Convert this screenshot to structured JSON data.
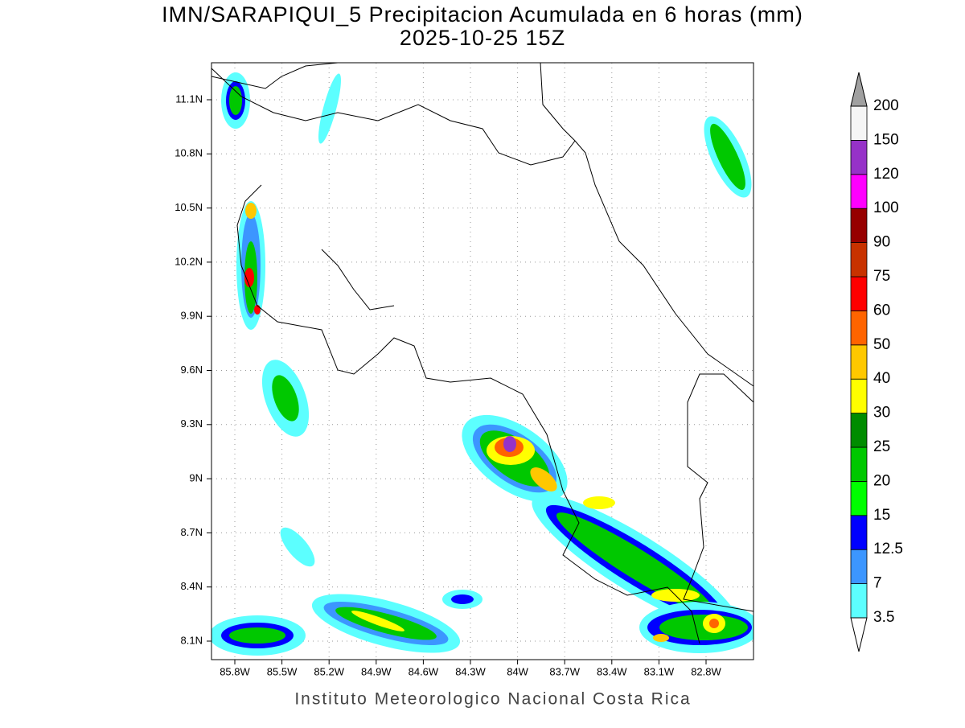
{
  "header": {
    "title": "IMN/SARAPIQUI_5 Precipitacion Acumulada en 6 horas (mm)",
    "subtitle": "2025-10-25 15Z"
  },
  "map": {
    "lat_ticks": [
      "11.1N",
      "10.8N",
      "10.5N",
      "10.2N",
      "9.9N",
      "9.6N",
      "9.3N",
      "9N",
      "8.7N",
      "8.4N",
      "8.1N"
    ],
    "lon_ticks": [
      "85.8W",
      "85.5W",
      "85.2W",
      "84.9W",
      "84.6W",
      "84.3W",
      "84W",
      "83.7W",
      "83.4W",
      "83.1W",
      "82.8W"
    ]
  },
  "colorbar": {
    "levels": [
      3.5,
      7,
      12.5,
      15,
      20,
      25,
      30,
      40,
      50,
      60,
      75,
      90,
      100,
      120,
      150,
      200
    ],
    "colors": [
      "#5cffff",
      "#3c96ff",
      "#0000ff",
      "#00ff00",
      "#00c800",
      "#008c00",
      "#ffff00",
      "#ffc800",
      "#ff6400",
      "#ff0000",
      "#c83200",
      "#960000",
      "#ff00ff",
      "#9632c8",
      "#f5f5f5"
    ],
    "over_color": "#a0a0a0",
    "under_color": "#ffffff"
  },
  "footer": "Instituto Meteorologico Nacional Costa Rica"
}
